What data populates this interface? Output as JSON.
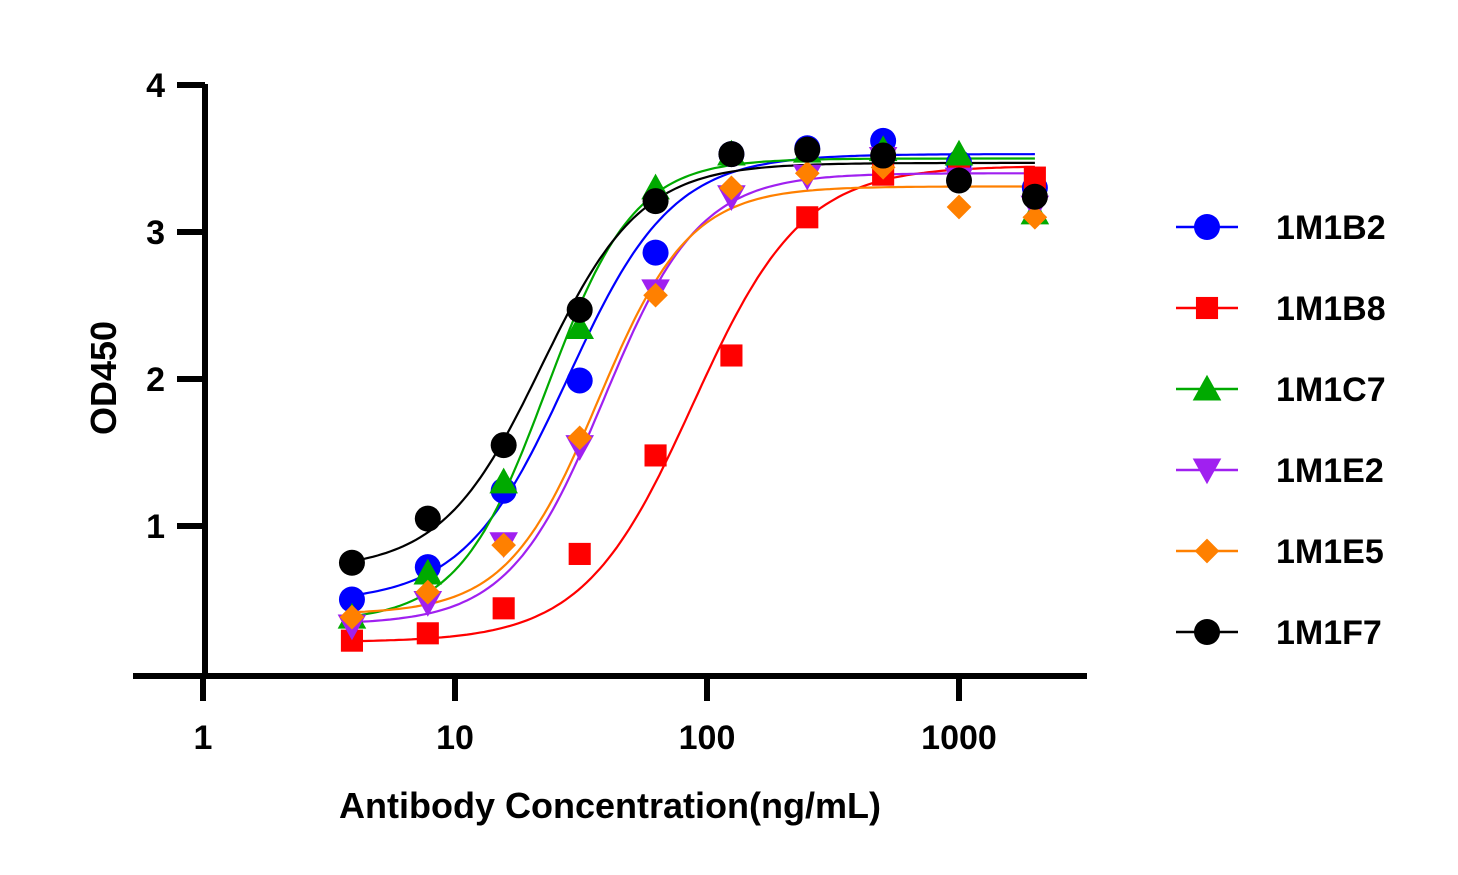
{
  "chart_data": {
    "type": "scatter",
    "title": "",
    "xlabel": "Antibody Concentration(ng/mL)",
    "ylabel": "OD450",
    "xscale": "log",
    "xlim": [
      0.75,
      3000
    ],
    "ylim": [
      0,
      4
    ],
    "x_ticks": [
      {
        "value": 1,
        "label": "1"
      },
      {
        "value": 10,
        "label": "10"
      },
      {
        "value": 100,
        "label": "100"
      },
      {
        "value": 1000,
        "label": "1000"
      }
    ],
    "y_ticks": [
      {
        "value": 1,
        "label": "1"
      },
      {
        "value": 2,
        "label": "2"
      },
      {
        "value": 3,
        "label": "3"
      },
      {
        "value": 4,
        "label": "4"
      }
    ],
    "legend_position": "right",
    "x": [
      3.9,
      7.8,
      15.6,
      31.25,
      62.5,
      125,
      250,
      500,
      1000,
      2000
    ],
    "series": [
      {
        "name": "1M1B2",
        "color": "#0000ff",
        "marker": "circle",
        "values": [
          0.5,
          0.72,
          1.24,
          1.99,
          2.86,
          3.53,
          3.57,
          3.62,
          3.47,
          3.3
        ],
        "fit": {
          "bottom": 0.48,
          "top": 3.53,
          "ec50": 28,
          "hill": 2.1
        }
      },
      {
        "name": "1M1B8",
        "color": "#ff0000",
        "marker": "square",
        "values": [
          0.22,
          0.27,
          0.44,
          0.81,
          1.48,
          2.16,
          3.1,
          3.39,
          3.38,
          3.37
        ],
        "fit": {
          "bottom": 0.21,
          "top": 3.45,
          "ec50": 88,
          "hill": 2.0
        }
      },
      {
        "name": "1M1C7",
        "color": "#00aa00",
        "marker": "triangle-up",
        "values": [
          0.38,
          0.68,
          1.3,
          2.35,
          3.3,
          3.53,
          3.55,
          3.56,
          3.53,
          3.13
        ],
        "fit": {
          "bottom": 0.35,
          "top": 3.5,
          "ec50": 23,
          "hill": 2.5
        }
      },
      {
        "name": "1M1E2",
        "color": "#a020f0",
        "marker": "triangle-down",
        "values": [
          0.32,
          0.48,
          0.88,
          1.54,
          2.6,
          3.24,
          3.38,
          3.5,
          3.36,
          3.17
        ],
        "fit": {
          "bottom": 0.33,
          "top": 3.4,
          "ec50": 39,
          "hill": 2.3
        }
      },
      {
        "name": "1M1E5",
        "color": "#ff8000",
        "marker": "diamond",
        "values": [
          0.38,
          0.55,
          0.87,
          1.6,
          2.57,
          3.3,
          3.4,
          3.44,
          3.17,
          3.1
        ],
        "fit": {
          "bottom": 0.4,
          "top": 3.31,
          "ec50": 37,
          "hill": 2.4
        }
      },
      {
        "name": "1M1F7",
        "color": "#000000",
        "marker": "circle",
        "values": [
          0.75,
          1.05,
          1.55,
          2.47,
          3.21,
          3.53,
          3.56,
          3.52,
          3.35,
          3.24
        ],
        "fit": {
          "bottom": 0.7,
          "top": 3.47,
          "ec50": 22,
          "hill": 2.2
        }
      }
    ]
  }
}
